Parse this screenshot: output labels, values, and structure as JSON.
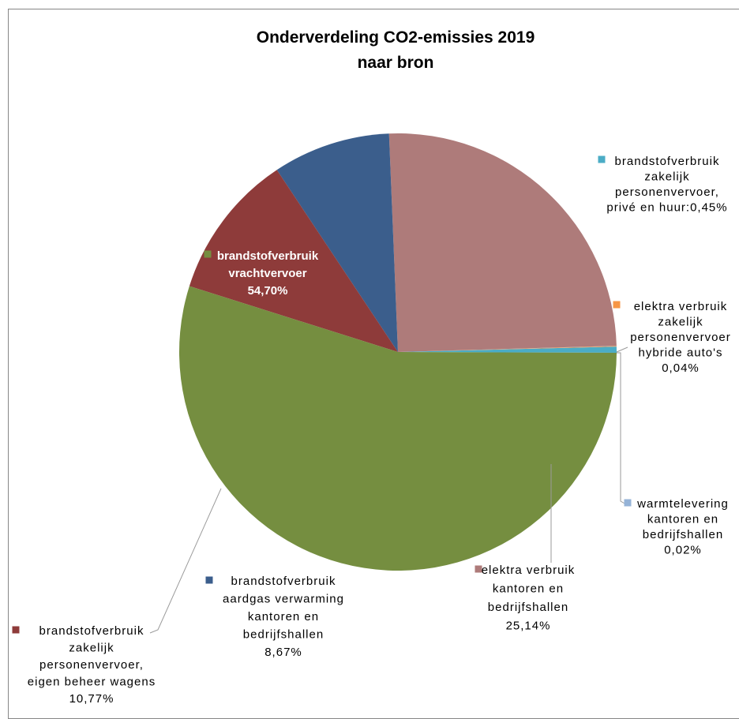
{
  "chart_data": {
    "type": "pie",
    "title": "Onderverdeling CO2-emissies 2019",
    "subtitle": "naar bron",
    "slices": [
      {
        "lines": [
          "brandstofverbruik",
          "zakelijk",
          "personenvervoer,",
          "privé en huur:0,45%"
        ],
        "value": 0.45,
        "color": "#4bacc6"
      },
      {
        "lines": [
          "elektra verbruik",
          "zakelijk",
          "personenvervoer",
          "hybride auto's",
          "0,04%"
        ],
        "value": 0.04,
        "color": "#f79646"
      },
      {
        "lines": [
          "warmtelevering",
          "kantoren en",
          "bedrijfshallen",
          "0,02%"
        ],
        "value": 0.02,
        "color": "#95b3d7"
      },
      {
        "lines": [
          "elektra verbruik",
          "kantoren en",
          "bedrijfshallen",
          "25,14%"
        ],
        "value": 25.14,
        "color": "#ae7b7a"
      },
      {
        "lines": [
          "brandstofverbruik",
          "aardgas verwarming",
          "kantoren en",
          "bedrijfshallen",
          "8,67%"
        ],
        "value": 8.67,
        "color": "#3b5e8c"
      },
      {
        "lines": [
          "brandstofverbruik",
          "zakelijk",
          "personenvervoer,",
          "eigen beheer wagens",
          "10,77%"
        ],
        "value": 10.77,
        "color": "#8e3b3a"
      },
      {
        "lines": [
          "brandstofverbruik",
          "vrachtvervoer",
          "54,70%"
        ],
        "value": 54.7,
        "color": "#758e40"
      }
    ],
    "legend": "none"
  }
}
